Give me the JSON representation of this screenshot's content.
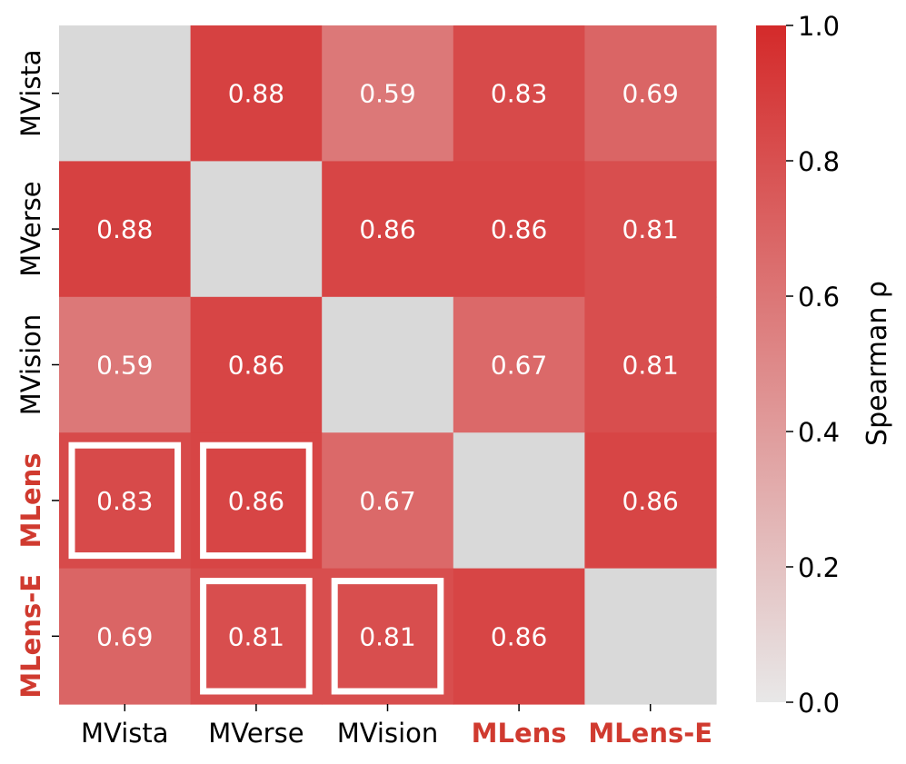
{
  "chart_data": {
    "type": "heatmap",
    "rows": [
      "MVista",
      "MVerse",
      "MVision",
      "MLens",
      "MLens-E"
    ],
    "columns": [
      "MVista",
      "MVerse",
      "MVision",
      "MLens",
      "MLens-E"
    ],
    "highlighted_labels": [
      "MLens",
      "MLens-E"
    ],
    "values": [
      [
        null,
        0.88,
        0.59,
        0.83,
        0.69
      ],
      [
        0.88,
        null,
        0.86,
        0.86,
        0.81
      ],
      [
        0.59,
        0.86,
        null,
        0.67,
        0.81
      ],
      [
        0.83,
        0.86,
        0.67,
        null,
        0.86
      ],
      [
        0.69,
        0.81,
        0.81,
        0.86,
        null
      ]
    ],
    "value_labels": [
      [
        "",
        "0.88",
        "0.59",
        "0.83",
        "0.69"
      ],
      [
        "0.88",
        "",
        "0.86",
        "0.86",
        "0.81"
      ],
      [
        "0.59",
        "0.86",
        "",
        "0.67",
        "0.81"
      ],
      [
        "0.83",
        "0.86",
        "0.67",
        "",
        "0.86"
      ],
      [
        "0.69",
        "0.81",
        "0.81",
        "0.86",
        ""
      ]
    ],
    "boxed_cells": [
      [
        3,
        0
      ],
      [
        3,
        1
      ],
      [
        4,
        1
      ],
      [
        4,
        2
      ]
    ],
    "colorbar": {
      "label": "Spearman ρ",
      "range": [
        0.0,
        1.0
      ],
      "ticks": [
        "0.0",
        "0.2",
        "0.4",
        "0.6",
        "0.8",
        "1.0"
      ]
    }
  },
  "colors": {
    "low": "#e8e8e8",
    "high": "#d42a2a",
    "diagonal": "#d9d9d9",
    "highlight_label": "#d03a2f",
    "box": "#ffffff",
    "cell_text": "#ffffff"
  }
}
